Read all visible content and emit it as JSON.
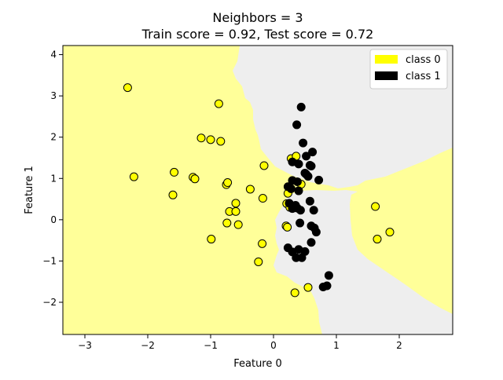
{
  "chart_data": {
    "type": "scatter",
    "title_line1": "Neighbors = 3",
    "title_line2": "Train score = 0.92, Test score = 0.72",
    "xlabel": "Feature 0",
    "ylabel": "Feature 1",
    "xlim": [
      -3.35,
      2.85
    ],
    "ylim": [
      -2.78,
      4.22
    ],
    "xticks": [
      -3,
      -2,
      -1,
      0,
      1,
      2
    ],
    "xtick_labels": [
      "−3",
      "−2",
      "−1",
      "0",
      "1",
      "2"
    ],
    "yticks": [
      -2,
      -1,
      0,
      1,
      2,
      3,
      4
    ],
    "ytick_labels": [
      "−2",
      "−1",
      "0",
      "1",
      "2",
      "3",
      "4"
    ],
    "grid": false,
    "legend_position": "top-right",
    "legend": [
      {
        "label": "class 0",
        "color": "#ffff00"
      },
      {
        "label": "class 1",
        "color": "#000000"
      }
    ],
    "colors": {
      "class0_point": "#ffff00",
      "class1_point": "#000000",
      "region_class0": "#ffff99",
      "region_class1": "#eeeeee"
    },
    "series": [
      {
        "name": "class 0",
        "points": [
          [
            -2.32,
            3.2
          ],
          [
            -2.22,
            1.04
          ],
          [
            -1.58,
            1.15
          ],
          [
            -1.6,
            0.6
          ],
          [
            -1.28,
            1.03
          ],
          [
            -1.25,
            0.99
          ],
          [
            -1.15,
            1.98
          ],
          [
            -1.0,
            1.94
          ],
          [
            -0.87,
            2.81
          ],
          [
            -0.84,
            1.9
          ],
          [
            -0.75,
            0.85
          ],
          [
            -0.73,
            0.9
          ],
          [
            -0.7,
            0.2
          ],
          [
            -0.6,
            0.4
          ],
          [
            -0.6,
            0.2
          ],
          [
            -0.74,
            -0.08
          ],
          [
            -0.56,
            -0.12
          ],
          [
            -0.99,
            -0.47
          ],
          [
            -0.37,
            0.74
          ],
          [
            -0.17,
            0.52
          ],
          [
            -0.15,
            1.31
          ],
          [
            -0.18,
            -0.58
          ],
          [
            -0.24,
            -1.02
          ],
          [
            0.21,
            0.39
          ],
          [
            0.2,
            -0.15
          ],
          [
            0.22,
            -0.18
          ],
          [
            0.26,
            0.3
          ],
          [
            0.23,
            0.64
          ],
          [
            0.28,
            1.48
          ],
          [
            0.36,
            1.54
          ],
          [
            0.44,
            0.86
          ],
          [
            0.52,
            1.1
          ],
          [
            0.34,
            -1.77
          ],
          [
            0.55,
            -1.64
          ],
          [
            1.62,
            0.32
          ],
          [
            1.65,
            -0.47
          ],
          [
            1.85,
            -0.3
          ]
        ]
      },
      {
        "name": "class 1",
        "points": [
          [
            0.44,
            2.73
          ],
          [
            0.37,
            2.3
          ],
          [
            0.47,
            1.86
          ],
          [
            0.62,
            1.64
          ],
          [
            0.52,
            1.54
          ],
          [
            0.3,
            1.4
          ],
          [
            0.4,
            1.35
          ],
          [
            0.58,
            1.32
          ],
          [
            0.6,
            1.3
          ],
          [
            0.5,
            1.13
          ],
          [
            0.55,
            1.05
          ],
          [
            0.3,
            0.95
          ],
          [
            0.38,
            0.92
          ],
          [
            0.72,
            0.96
          ],
          [
            0.23,
            0.8
          ],
          [
            0.28,
            0.75
          ],
          [
            0.4,
            0.7
          ],
          [
            0.58,
            0.45
          ],
          [
            0.35,
            0.35
          ],
          [
            0.3,
            0.27
          ],
          [
            0.38,
            0.28
          ],
          [
            0.43,
            0.23
          ],
          [
            0.64,
            0.23
          ],
          [
            0.25,
            0.4
          ],
          [
            0.42,
            -0.08
          ],
          [
            0.6,
            -0.15
          ],
          [
            0.65,
            -0.2
          ],
          [
            0.68,
            -0.3
          ],
          [
            0.23,
            -0.68
          ],
          [
            0.3,
            -0.78
          ],
          [
            0.4,
            -0.72
          ],
          [
            0.5,
            -0.77
          ],
          [
            0.6,
            -0.55
          ],
          [
            0.36,
            -0.92
          ],
          [
            0.45,
            -0.92
          ],
          [
            0.88,
            -1.35
          ],
          [
            0.85,
            -1.6
          ],
          [
            0.79,
            -1.63
          ]
        ]
      }
    ]
  }
}
